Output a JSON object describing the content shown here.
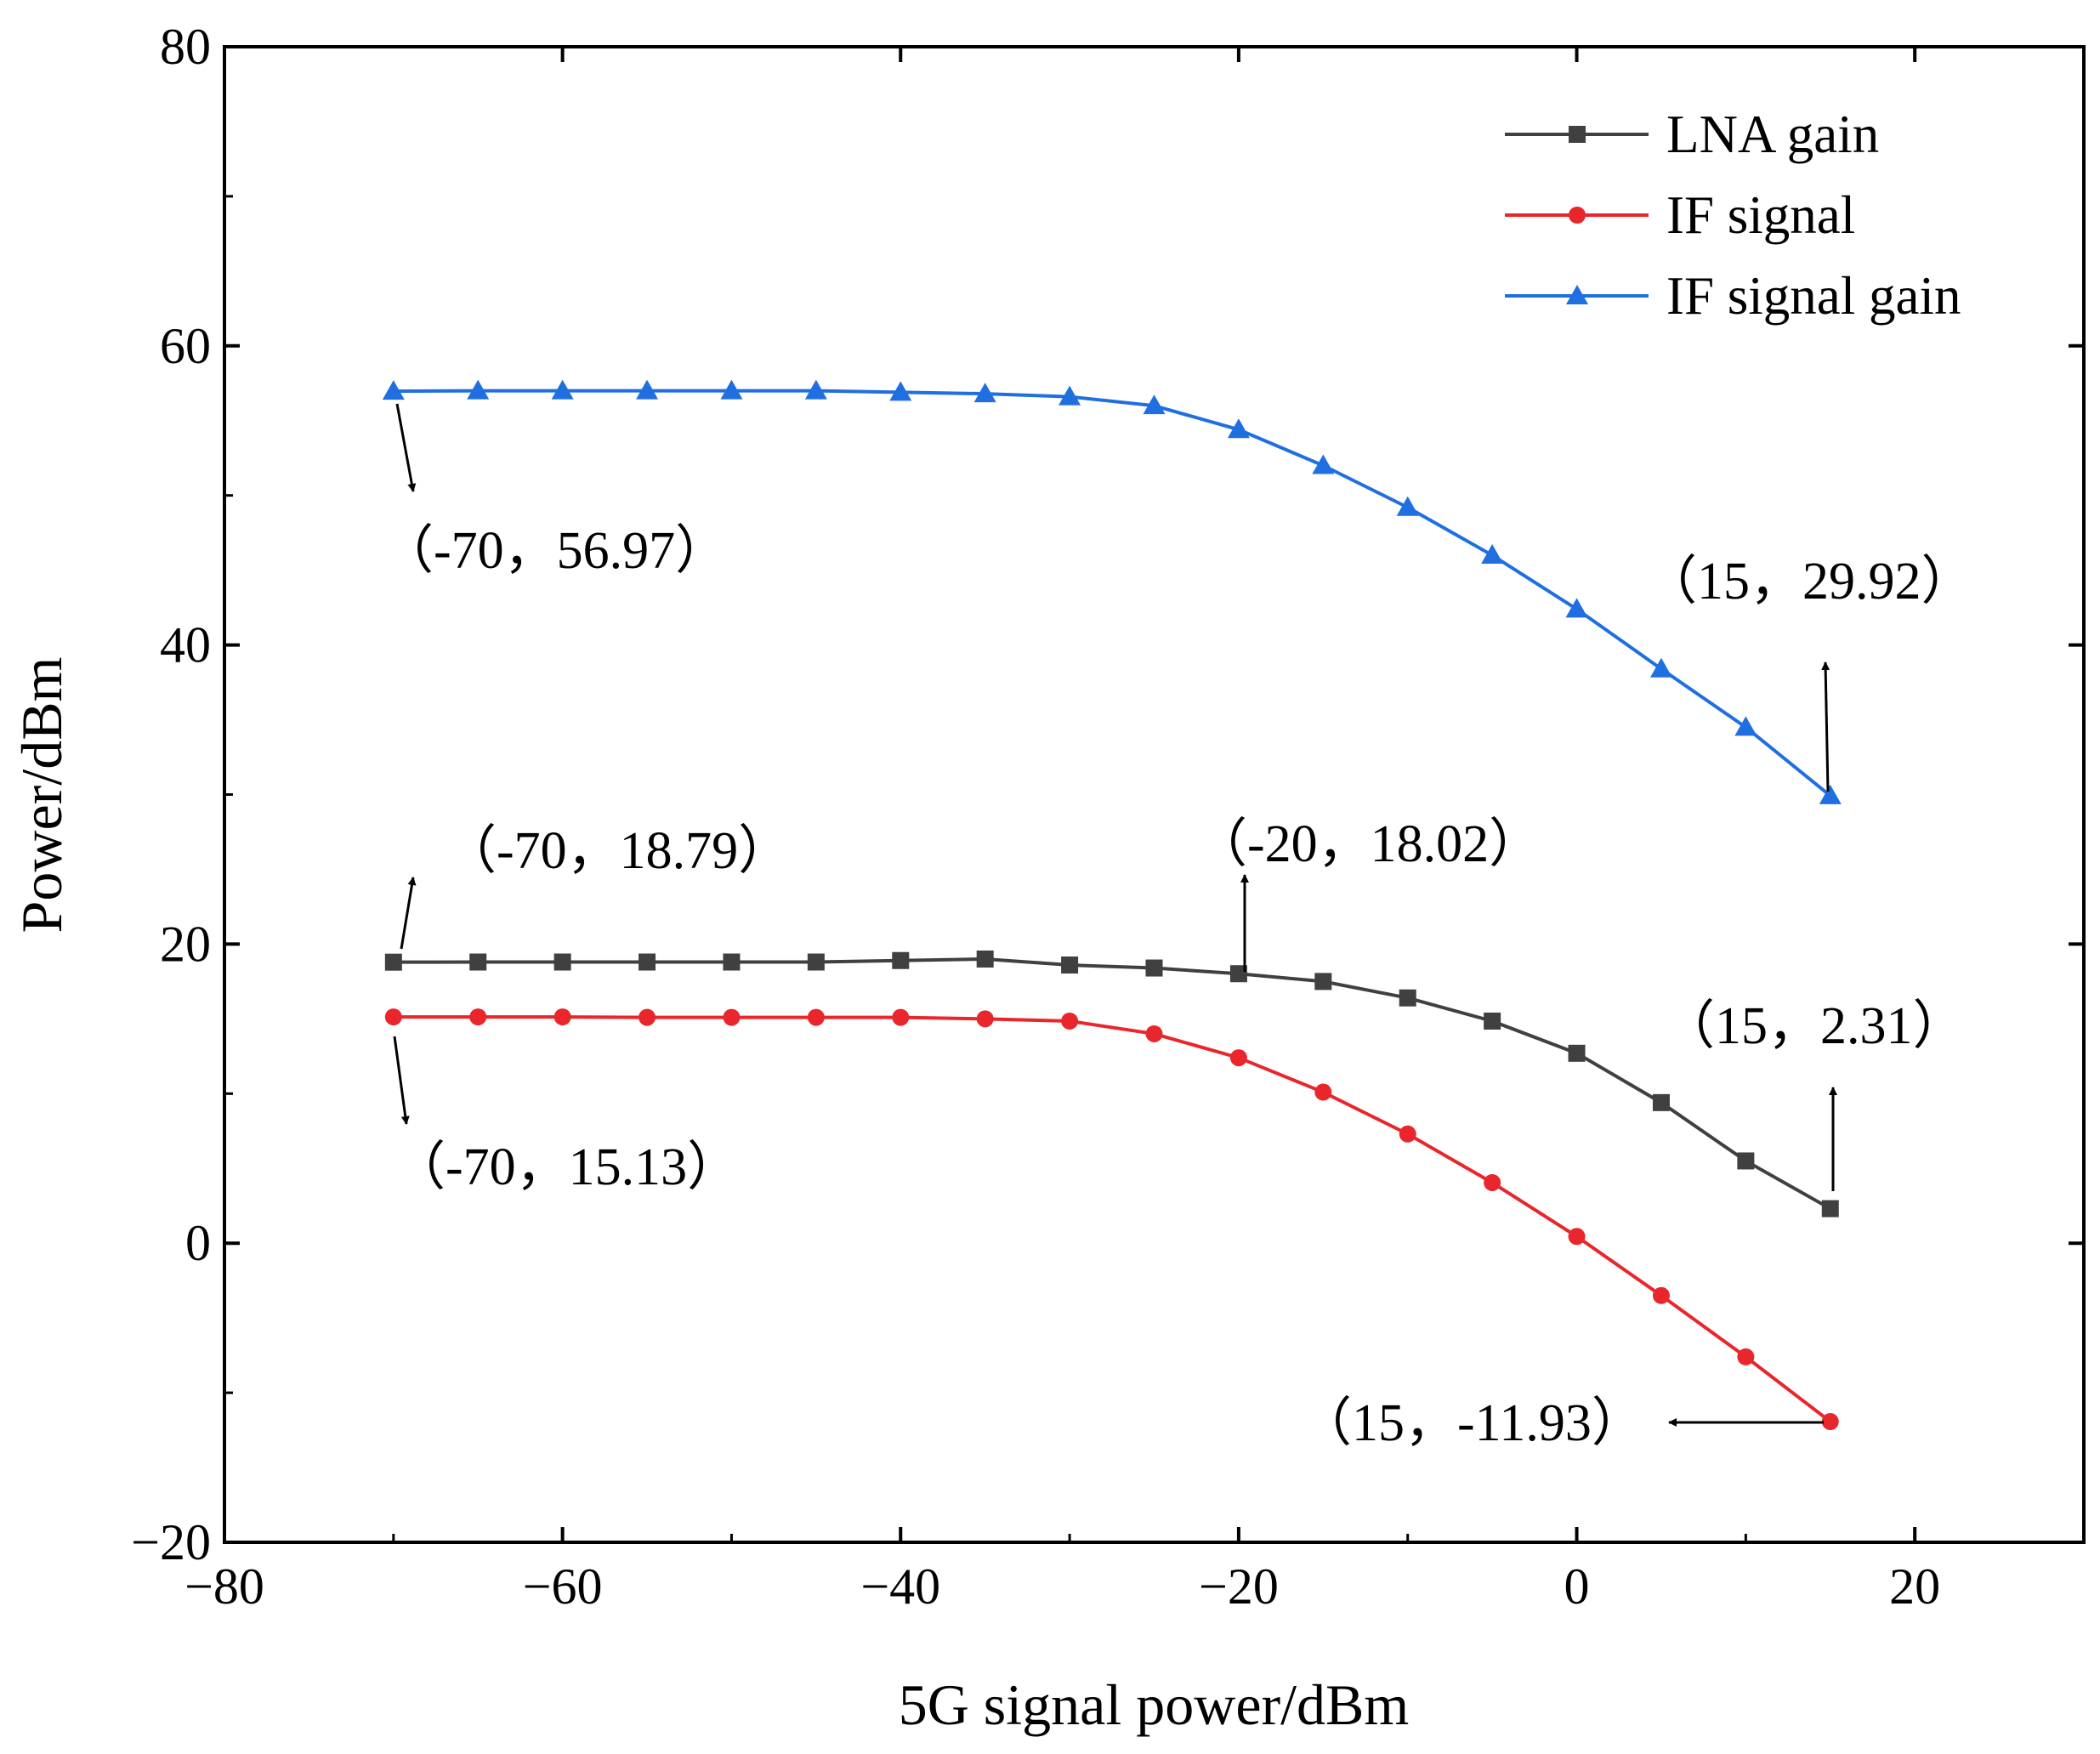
{
  "chart_data": {
    "type": "line",
    "title": "",
    "xlabel": "5G signal power/dBm",
    "ylabel": "Power/dBm",
    "xlim": [
      -80,
      30
    ],
    "ylim": [
      -20,
      80
    ],
    "xticks": [
      -80,
      -60,
      -40,
      -20,
      0,
      20
    ],
    "yticks": [
      -20,
      0,
      20,
      40,
      60,
      80
    ],
    "xtick_labels": [
      "−80",
      "−60",
      "−40",
      "−20",
      "0",
      "20"
    ],
    "ytick_labels": [
      "−20",
      "0",
      "20",
      "40",
      "60",
      "80"
    ],
    "grid": false,
    "legend_position": "top-right",
    "x": [
      -70,
      -65,
      -60,
      -55,
      -50,
      -45,
      -40,
      -35,
      -30,
      -25,
      -20,
      -15,
      -10,
      -5,
      0,
      5,
      10,
      15
    ],
    "series": [
      {
        "name": "LNA gain",
        "color": "#404040",
        "marker": "square",
        "values": [
          18.79,
          18.8,
          18.8,
          18.8,
          18.8,
          18.8,
          18.9,
          19.0,
          18.6,
          18.4,
          18.02,
          17.5,
          16.4,
          14.85,
          12.7,
          9.4,
          5.5,
          2.31
        ]
      },
      {
        "name": "IF signal",
        "color": "#e8262b",
        "marker": "circle",
        "values": [
          15.13,
          15.13,
          15.13,
          15.1,
          15.1,
          15.1,
          15.1,
          15.0,
          14.85,
          14.0,
          12.4,
          10.1,
          7.3,
          4.05,
          0.45,
          -3.5,
          -7.6,
          -11.93
        ]
      },
      {
        "name": "IF signal gain",
        "color": "#1f6fe0",
        "marker": "triangle",
        "values": [
          56.97,
          57.0,
          57.0,
          57.0,
          57.0,
          57.0,
          56.9,
          56.8,
          56.6,
          56.0,
          54.4,
          52.0,
          49.2,
          46.0,
          42.4,
          38.4,
          34.5,
          29.92
        ]
      }
    ],
    "annotations": [
      {
        "text": "（-70，56.97）",
        "x": -70,
        "y": 56.97
      },
      {
        "text": "（15，29.92）",
        "x": 15,
        "y": 29.92
      },
      {
        "text": "（-70，18.79）",
        "x": -70,
        "y": 18.79
      },
      {
        "text": "（-20，18.02）",
        "x": -20,
        "y": 18.02
      },
      {
        "text": "（15，2.31）",
        "x": 15,
        "y": 2.31
      },
      {
        "text": "（-70，15.13）",
        "x": -70,
        "y": 15.13
      },
      {
        "text": "（15，-11.93）",
        "x": 15,
        "y": -11.93
      }
    ]
  }
}
